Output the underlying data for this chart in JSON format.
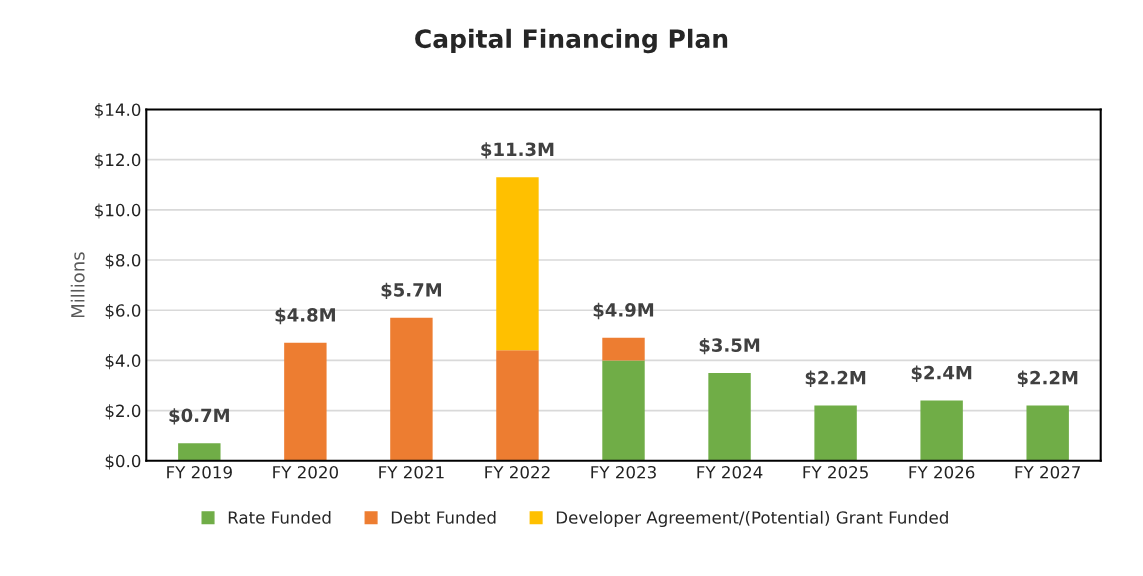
{
  "chart_data": {
    "type": "bar",
    "title": "Capital Financing Plan",
    "ylabel": "Millions",
    "categories": [
      "FY 2019",
      "FY 2020",
      "FY 2021",
      "FY 2022",
      "FY 2023",
      "FY 2024",
      "FY 2025",
      "FY 2026",
      "FY 2027"
    ],
    "stacked": true,
    "series": [
      {
        "name": "Rate Funded",
        "color": "#70ad47",
        "values": [
          0.7,
          null,
          null,
          null,
          4.0,
          3.5,
          2.2,
          2.4,
          2.2
        ]
      },
      {
        "name": "Debt Funded",
        "color": "#ed7d31",
        "values": [
          null,
          4.7,
          5.7,
          4.4,
          0.9,
          null,
          null,
          null,
          null
        ]
      },
      {
        "name": "Developer Agreement/(Potential) Grant Funded",
        "color": "#ffc000",
        "values": [
          null,
          null,
          null,
          6.9,
          null,
          null,
          null,
          null,
          null
        ]
      }
    ],
    "totals": [
      "$0.7M",
      "$4.8M",
      "$5.7M",
      "$11.3M",
      "$4.9M",
      "$3.5M",
      "$2.2M",
      "$2.4M",
      "$2.2M"
    ],
    "ylim": [
      0,
      14
    ],
    "yticks": [
      {
        "value": 0,
        "label": "$0.0"
      },
      {
        "value": 2,
        "label": "$2.0"
      },
      {
        "value": 4,
        "label": "$4.0"
      },
      {
        "value": 6,
        "label": "$6.0"
      },
      {
        "value": 8,
        "label": "$8.0"
      },
      {
        "value": 10,
        "label": "$10.0"
      },
      {
        "value": 12,
        "label": "$12.0"
      },
      {
        "value": 14,
        "label": "$14.0"
      }
    ],
    "grid": "y",
    "legend": "bottom"
  }
}
